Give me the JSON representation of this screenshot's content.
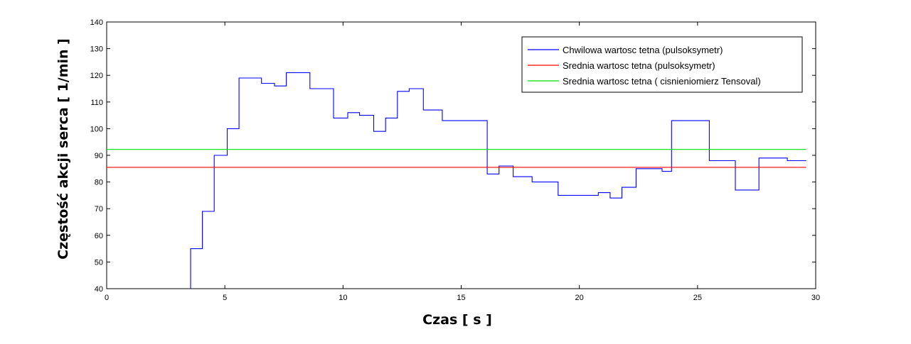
{
  "chart_data": {
    "type": "line",
    "title": "",
    "xlabel": "Czas [ s ]",
    "ylabel": "Częstość akcji serca [ 1/min ]",
    "xlim": [
      0,
      30
    ],
    "ylim": [
      40,
      140
    ],
    "xticks": [
      0,
      5,
      10,
      15,
      20,
      25,
      30
    ],
    "yticks": [
      40,
      50,
      60,
      70,
      80,
      90,
      100,
      110,
      120,
      130,
      140
    ],
    "grid": false,
    "legend_position": "top-right",
    "series": [
      {
        "name": "Chwilowa wartosc tetna (pulsoksymetr)",
        "color": "#0000ff",
        "style": "step",
        "x": [
          3.55,
          3.55,
          4.05,
          4.05,
          4.55,
          4.55,
          5.1,
          5.1,
          5.6,
          5.6,
          6.55,
          6.55,
          7.1,
          7.1,
          7.6,
          7.6,
          8.6,
          8.6,
          9.6,
          9.6,
          10.2,
          10.2,
          10.7,
          10.7,
          11.3,
          11.3,
          11.8,
          11.8,
          12.3,
          12.3,
          12.8,
          12.8,
          13.4,
          13.4,
          14.2,
          14.2,
          16.1,
          16.1,
          16.6,
          16.6,
          17.2,
          17.2,
          18.0,
          18.0,
          19.1,
          19.1,
          20.8,
          20.8,
          21.3,
          21.3,
          21.8,
          21.8,
          22.4,
          22.4,
          23.5,
          23.5,
          23.9,
          23.9,
          25.5,
          25.5,
          26.6,
          26.6,
          27.6,
          27.6,
          28.8,
          28.8,
          29.6
        ],
        "y": [
          40,
          55,
          55,
          69,
          69,
          90,
          90,
          100,
          100,
          119,
          119,
          117,
          117,
          116,
          116,
          121,
          121,
          115,
          115,
          104,
          104,
          106,
          106,
          105,
          105,
          99,
          99,
          104,
          104,
          114,
          114,
          115,
          115,
          107,
          107,
          103,
          103,
          83,
          83,
          86,
          86,
          82,
          82,
          80,
          80,
          75,
          75,
          76,
          76,
          74,
          74,
          78,
          78,
          85,
          85,
          84,
          84,
          103,
          103,
          88,
          88,
          77,
          77,
          89,
          89,
          88,
          88
        ]
      },
      {
        "name": "Srednia wartosc tetna (pulsoksymetr)",
        "color": "#ff0000",
        "style": "line",
        "x": [
          0,
          29.6
        ],
        "y": [
          85.5,
          85.5
        ]
      },
      {
        "name": "Srednia wartosc tetna ( cisnieniomierz Tensoval)",
        "color": "#00e000",
        "style": "line",
        "x": [
          0,
          29.6
        ],
        "y": [
          92.2,
          92.2
        ]
      }
    ]
  }
}
